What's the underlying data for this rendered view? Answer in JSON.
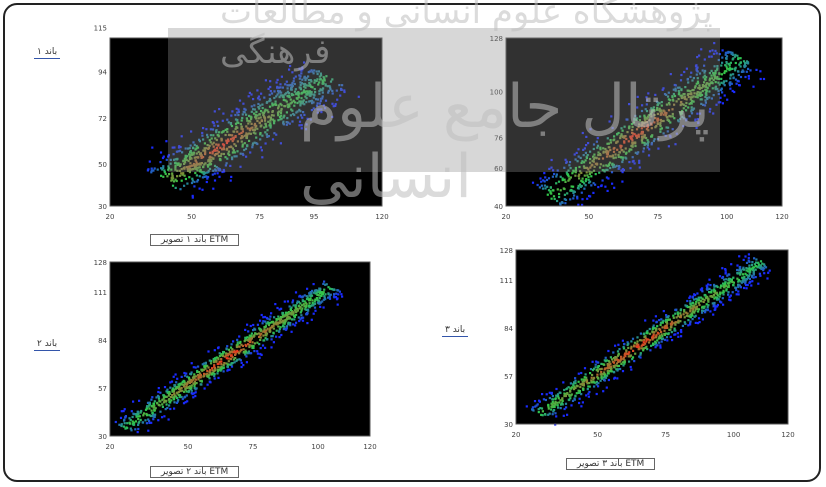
{
  "watermark": {
    "top": "پژوهشگاه علوم انسانی و مطالعات فرهنگی",
    "middle": "پرتال جامع علوم انسانی"
  },
  "colors": {
    "background": "#000000",
    "low": "#1a2bff",
    "mid": "#2ec94a",
    "high": "#ff2a1a",
    "border": "#222222"
  },
  "chart_data": [
    {
      "type": "heatmap",
      "title": "",
      "ylabel": "باند ۱",
      "xlabel": "باند ۱ تصویر ETM",
      "xlim": [
        20,
        120
      ],
      "ylim": [
        30,
        110
      ],
      "xticks": [
        "20",
        "50",
        "75",
        "95",
        "120"
      ],
      "yticks": [
        "30",
        "50",
        "72",
        "94",
        "115"
      ],
      "distribution": {
        "x0": 40,
        "y0": 42,
        "x1": 100,
        "y1": 92,
        "spread": 0.09,
        "color_peak_at": 0.35
      }
    },
    {
      "type": "heatmap",
      "title": "",
      "ylabel": "",
      "xlabel": "",
      "xlim": [
        20,
        120
      ],
      "ylim": [
        40,
        128
      ],
      "xticks": [
        "20",
        "50",
        "75",
        "100",
        "120"
      ],
      "yticks": [
        "40",
        "60",
        "76",
        "100",
        "128"
      ],
      "distribution": {
        "x0": 35,
        "y0": 45,
        "x1": 105,
        "y1": 118,
        "spread": 0.08,
        "color_peak_at": 0.45
      }
    },
    {
      "type": "heatmap",
      "title": "",
      "ylabel": "باند ۲",
      "xlabel": "باند ۲ تصویر ETM",
      "xlim": [
        20,
        120
      ],
      "ylim": [
        30,
        128
      ],
      "xticks": [
        "20",
        "50",
        "75",
        "100",
        "120"
      ],
      "yticks": [
        "30",
        "57",
        "84",
        "111",
        "128"
      ],
      "distribution": {
        "x0": 25,
        "y0": 35,
        "x1": 105,
        "y1": 115,
        "spread": 0.045,
        "color_peak_at": 0.5
      }
    },
    {
      "type": "heatmap",
      "title": "",
      "ylabel": "باند ۳",
      "xlabel": "باند ۳ تصویر ETM",
      "xlim": [
        20,
        120
      ],
      "ylim": [
        30,
        128
      ],
      "xticks": [
        "20",
        "50",
        "75",
        "100",
        "120"
      ],
      "yticks": [
        "30",
        "57",
        "84",
        "111",
        "128"
      ],
      "distribution": {
        "x0": 28,
        "y0": 36,
        "x1": 110,
        "y1": 122,
        "spread": 0.045,
        "color_peak_at": 0.45
      }
    }
  ]
}
